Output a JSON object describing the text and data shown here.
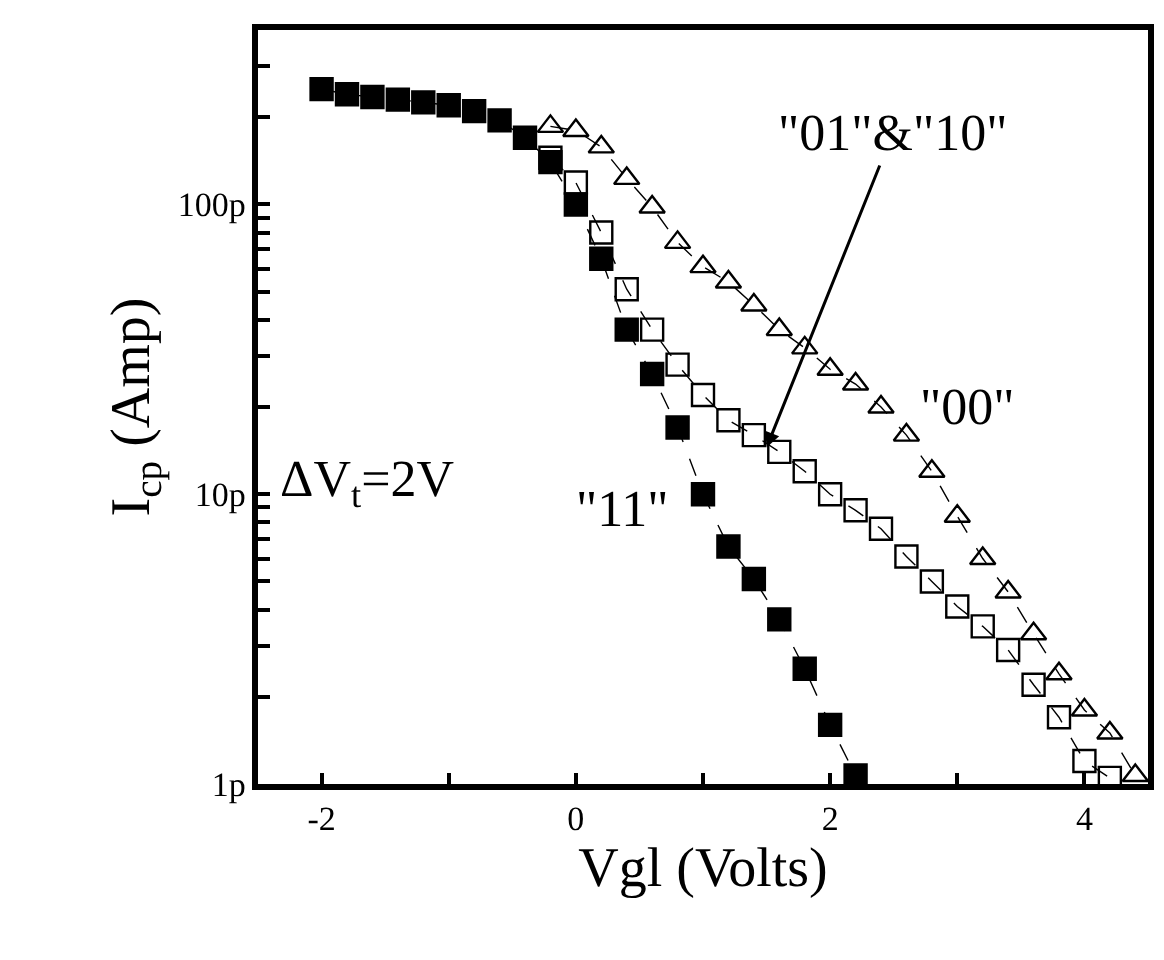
{
  "chart_data": {
    "type": "line",
    "xlabel": "Vgl (Volts)",
    "ylabel": "I$_{cp}$ (Amp)",
    "series": [
      {
        "color": "#000000",
        "marker": "square",
        "x": [
          -2.0,
          -1.8,
          -1.6,
          -1.4,
          -1.2,
          -1.0,
          -0.8,
          -0.6,
          -0.4,
          -0.2,
          0.0,
          0.2,
          0.4,
          0.6,
          0.8,
          1.0,
          1.2,
          1.4,
          1.6,
          1.8,
          2.0,
          2.2
        ],
        "values": [
          250,
          240,
          235,
          230,
          225,
          220,
          210,
          195,
          170,
          140,
          100,
          65,
          37,
          26,
          17,
          10,
          6.6,
          5.1,
          3.7,
          2.5,
          1.6,
          1.07
        ]
      },
      {
        "color": "#000000",
        "marker": "square-open",
        "x": [
          -0.2,
          0.0,
          0.2,
          0.4,
          0.6,
          0.8,
          1.0,
          1.2,
          1.4,
          1.6,
          1.8,
          2.0,
          2.2,
          2.4,
          2.6,
          2.8,
          3.0,
          3.2,
          3.4,
          3.6,
          3.8,
          4.0,
          4.2
        ],
        "values": [
          145,
          119,
          80,
          51,
          37,
          28,
          22,
          18,
          16,
          14,
          12,
          10,
          8.8,
          7.6,
          6.1,
          5.0,
          4.1,
          3.5,
          2.9,
          2.2,
          1.7,
          1.2,
          1.05
        ]
      },
      {
        "color": "#000000",
        "marker": "triangle-open",
        "x": [
          -0.2,
          0.0,
          0.2,
          0.4,
          0.6,
          0.8,
          1.0,
          1.2,
          1.4,
          1.6,
          1.8,
          2.0,
          2.2,
          2.4,
          2.6,
          2.8,
          3.0,
          3.2,
          3.4,
          3.6,
          3.8,
          4.0,
          4.2,
          4.4
        ],
        "values": [
          186,
          180,
          158,
          123,
          98,
          74,
          61,
          54,
          45,
          37,
          32,
          27,
          24,
          20,
          16,
          12,
          8.4,
          6.0,
          4.6,
          3.3,
          2.4,
          1.8,
          1.5,
          1.07
        ]
      }
    ],
    "line_style": "dashed",
    "log": "y",
    "xlim": [
      -2.5,
      4.5
    ],
    "xticks": [
      -2,
      {
        "value": -1,
        "label": null
      },
      0,
      {
        "value": 1,
        "label": null
      },
      2,
      {
        "value": 3,
        "label": null
      },
      4
    ],
    "ylim": [
      1,
      400
    ],
    "yticks": [
      {
        "value": 1,
        "label": "1p"
      },
      {
        "value": 2,
        "label": null
      },
      {
        "value": 3,
        "label": null
      },
      {
        "value": 4,
        "label": null
      },
      {
        "value": 5,
        "label": null
      },
      {
        "value": 6,
        "label": null
      },
      {
        "value": 7,
        "label": null
      },
      {
        "value": 8,
        "label": null
      },
      {
        "value": 9,
        "label": null
      },
      {
        "value": 10,
        "label": "10p"
      },
      {
        "value": 20,
        "label": null
      },
      {
        "value": 30,
        "label": null
      },
      {
        "value": 40,
        "label": null
      },
      {
        "value": 50,
        "label": null
      },
      {
        "value": 60,
        "label": null
      },
      {
        "value": 70,
        "label": null
      },
      {
        "value": 80,
        "label": null
      },
      {
        "value": 90,
        "label": null
      },
      {
        "value": 100,
        "label": "100p"
      },
      {
        "value": 200,
        "label": null
      },
      {
        "value": 300,
        "label": null
      }
    ],
    "legend": false,
    "annotations": [
      {
        "text": "\"01\"&\"10\"",
        "x": 1.5,
        "y": 14.5
      },
      "\"00\"",
      "\"11\"",
      "ΔV$_{t}$=2V"
    ]
  }
}
